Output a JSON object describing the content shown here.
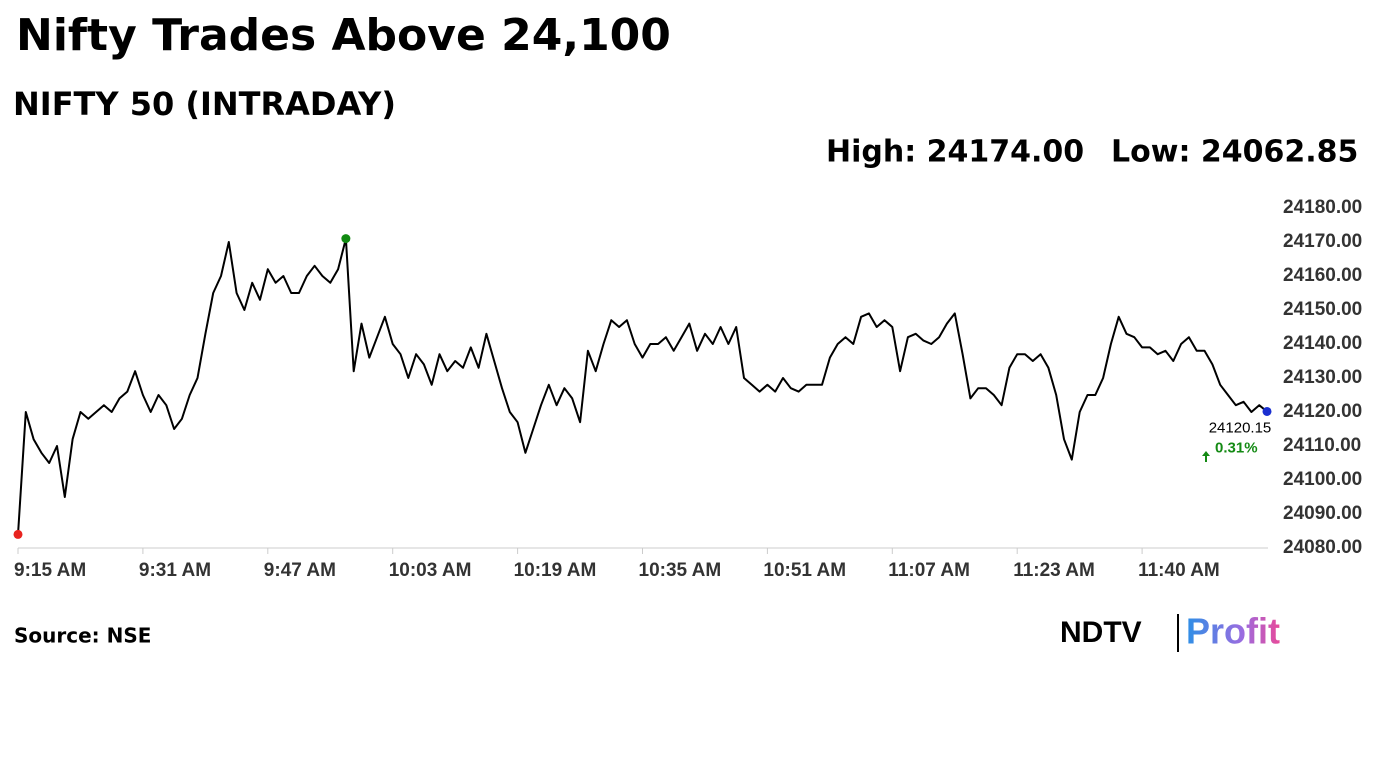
{
  "chart_data": {
    "type": "line",
    "title": "Nifty Trades Above 24,100",
    "subtitle": "NIFTY 50 (INTRADAY)",
    "high_label": "High: 24174.00",
    "low_label": "Low: 24062.85",
    "source": "Source: NSE",
    "change_label": "0.31%",
    "change_color": "#148a14",
    "brand": "NDTV",
    "brand_sub": "Profit",
    "start_color": "#e8231f",
    "high_color": "#118a11",
    "end_color": "#1a2fd0",
    "categories": [
      "9:15 AM",
      null,
      null,
      null,
      null,
      null,
      null,
      null,
      null,
      null,
      null,
      null,
      null,
      null,
      null,
      null,
      "9:31 AM",
      null,
      null,
      null,
      null,
      null,
      null,
      null,
      null,
      null,
      null,
      null,
      null,
      null,
      null,
      null,
      "9:47 AM",
      null,
      null,
      null,
      null,
      null,
      null,
      null,
      null,
      null,
      null,
      null,
      null,
      null,
      null,
      null,
      "10:03 AM",
      null,
      null,
      null,
      null,
      null,
      null,
      null,
      null,
      null,
      null,
      null,
      null,
      null,
      null,
      null,
      "10:19 AM",
      null,
      null,
      null,
      null,
      null,
      null,
      null,
      null,
      null,
      null,
      null,
      null,
      null,
      null,
      null,
      "10:35 AM",
      null,
      null,
      null,
      null,
      null,
      null,
      null,
      null,
      null,
      null,
      null,
      null,
      null,
      null,
      null,
      "10:51 AM",
      null,
      null,
      null,
      null,
      null,
      null,
      null,
      null,
      null,
      null,
      null,
      null,
      null,
      null,
      null,
      "11:07 AM",
      null,
      null,
      null,
      null,
      null,
      null,
      null,
      null,
      null,
      null,
      null,
      null,
      null,
      null,
      null,
      "11:23 AM",
      null,
      null,
      null,
      null,
      null,
      null,
      null,
      null,
      null,
      null,
      null,
      null,
      null,
      null,
      null,
      "11:40 AM",
      null,
      null,
      null,
      null,
      null,
      null,
      null,
      null,
      null,
      null,
      null,
      null,
      null,
      null,
      null,
      null
    ],
    "series": [
      {
        "name": "NIFTY 50",
        "color": "#000000",
        "values": [
          24084,
          24120,
          24112,
          24108,
          24105,
          24110,
          24095,
          24112,
          24120,
          24118,
          24120,
          24122,
          24120,
          24124,
          24126,
          24132,
          24125,
          24120,
          24125,
          24122,
          24115,
          24118,
          24125,
          24130,
          24143,
          24155,
          24160,
          24170,
          24155,
          24150,
          24158,
          24153,
          24162,
          24158,
          24160,
          24155,
          24155,
          24160,
          24163,
          24160,
          24158,
          24162,
          24171,
          24132,
          24146,
          24136,
          24142,
          24148,
          24140,
          24137,
          24130,
          24137,
          24134,
          24128,
          24137,
          24132,
          24135,
          24133,
          24139,
          24133,
          24143,
          24135,
          24127,
          24120,
          24117,
          24108,
          24115,
          24122,
          24128,
          24122,
          24127,
          24124,
          24117,
          24138,
          24132,
          24140,
          24147,
          24145,
          24147,
          24140,
          24136,
          24140,
          24140,
          24142,
          24138,
          24142,
          24146,
          24138,
          24143,
          24140,
          24145,
          24140,
          24145,
          24130,
          24128,
          24126,
          24128,
          24126,
          24130,
          24127,
          24126,
          24128,
          24128,
          24128,
          24136,
          24140,
          24142,
          24140,
          24148,
          24149,
          24145,
          24147,
          24145,
          24132,
          24142,
          24143,
          24141,
          24140,
          24142,
          24146,
          24149,
          24137,
          24124,
          24127,
          24127,
          24125,
          24122,
          24133,
          24137,
          24137,
          24135,
          24137,
          24133,
          24125,
          24112,
          24106,
          24120,
          24125,
          24125,
          24130,
          24140,
          24148,
          24143,
          24142,
          24139,
          24139,
          24137,
          24138,
          24135,
          24140,
          24142,
          24138,
          24138,
          24134,
          24128,
          24125,
          24122,
          24123,
          24120,
          24122,
          24120.15
        ]
      }
    ],
    "ylim": [
      24080,
      24180
    ],
    "yticks": [
      {
        "value": 24080,
        "label": "24080.00"
      },
      {
        "value": 24090,
        "label": "24090.00"
      },
      {
        "value": 24100,
        "label": "24100.00"
      },
      {
        "value": 24110,
        "label": "24110.00"
      },
      {
        "value": 24120,
        "label": "24120.00"
      },
      {
        "value": 24130,
        "label": "24130.00"
      },
      {
        "value": 24140,
        "label": "24140.00"
      },
      {
        "value": 24150,
        "label": "24150.00"
      },
      {
        "value": 24160,
        "label": "24160.00"
      },
      {
        "value": 24170,
        "label": "24170.00"
      },
      {
        "value": 24180,
        "label": "24180.00"
      }
    ],
    "grid": false
  }
}
